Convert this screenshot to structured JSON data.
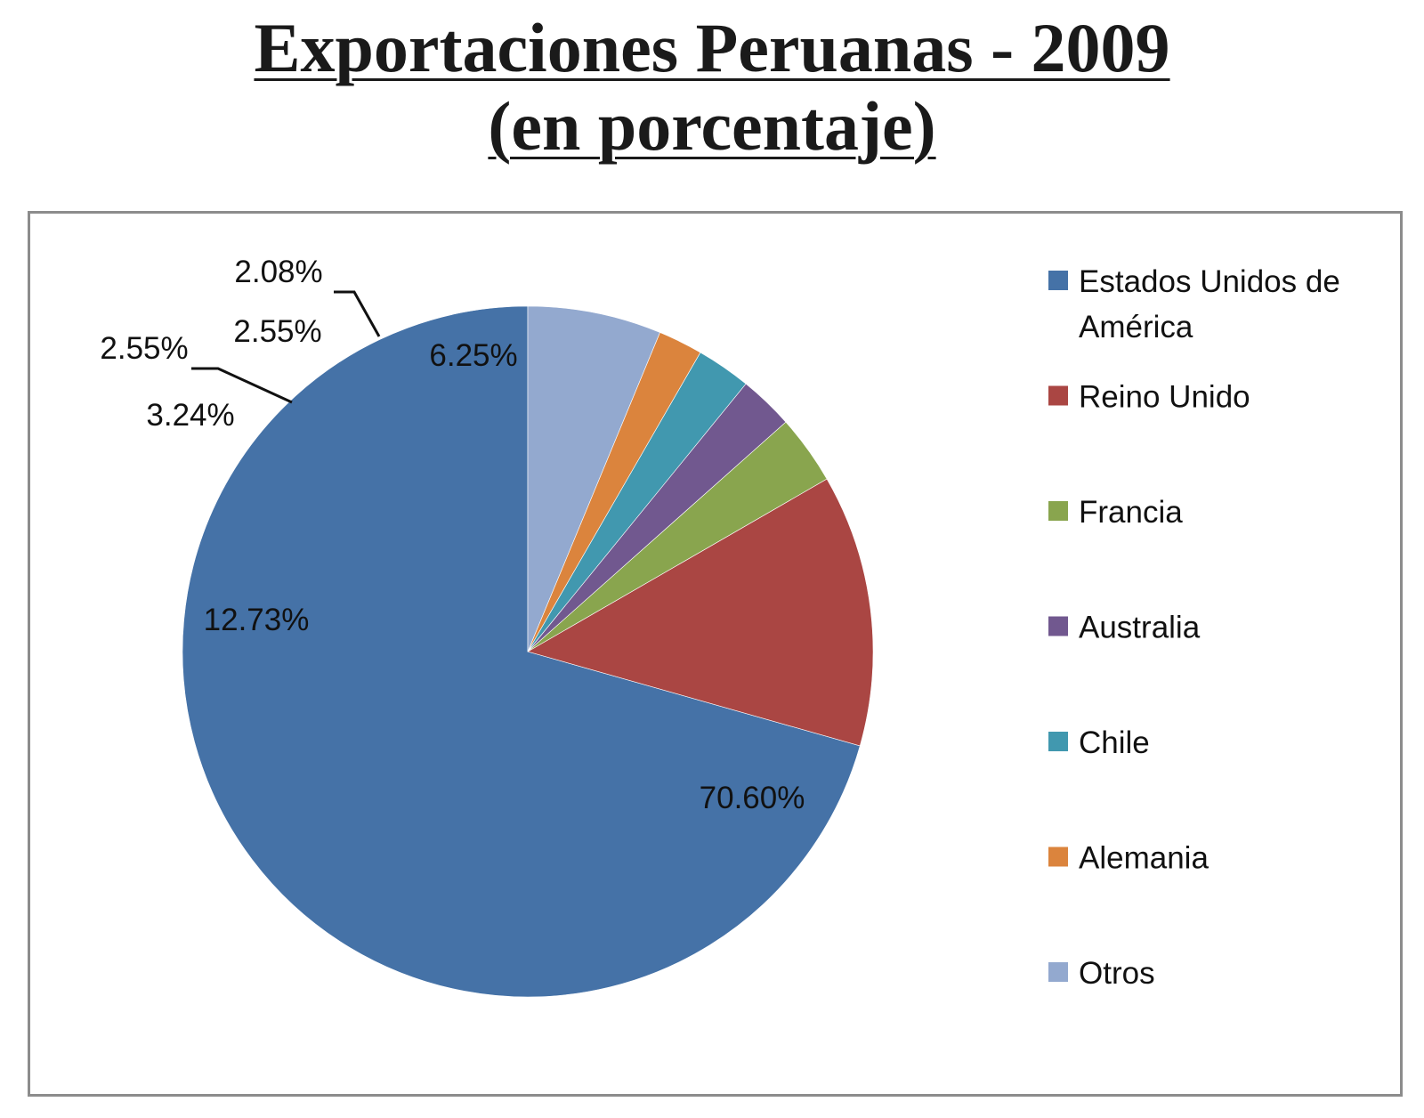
{
  "title_line1": "Exportaciones Peruanas - 2009",
  "title_line2": "(en porcentaje)",
  "chart_data": {
    "type": "pie",
    "title": "Exportaciones Peruanas - 2009 (en porcentaje)",
    "legend_position": "right",
    "slices": [
      {
        "name": "Estados Unidos de América",
        "legend_lines": [
          "Estados Unidos de",
          "América"
        ],
        "value": 70.6,
        "label": "70.60%",
        "color": "#4572A7"
      },
      {
        "name": "Reino Unido",
        "legend_lines": [
          "Reino Unido"
        ],
        "value": 12.73,
        "label": "12.73%",
        "color": "#AA4643"
      },
      {
        "name": "Francia",
        "legend_lines": [
          "Francia"
        ],
        "value": 3.24,
        "label": "3.24%",
        "color": "#89A54E"
      },
      {
        "name": "Australia",
        "legend_lines": [
          "Australia"
        ],
        "value": 2.55,
        "label": "2.55%",
        "color": "#71588F"
      },
      {
        "name": "Chile",
        "legend_lines": [
          "Chile"
        ],
        "value": 2.55,
        "label": "2.55%",
        "color": "#4198AF"
      },
      {
        "name": "Alemania",
        "legend_lines": [
          "Alemania"
        ],
        "value": 2.08,
        "label": "2.08%",
        "color": "#DB843D"
      },
      {
        "name": "Otros",
        "legend_lines": [
          "Otros"
        ],
        "value": 6.25,
        "label": "6.25%",
        "color": "#93A9CF"
      }
    ]
  }
}
